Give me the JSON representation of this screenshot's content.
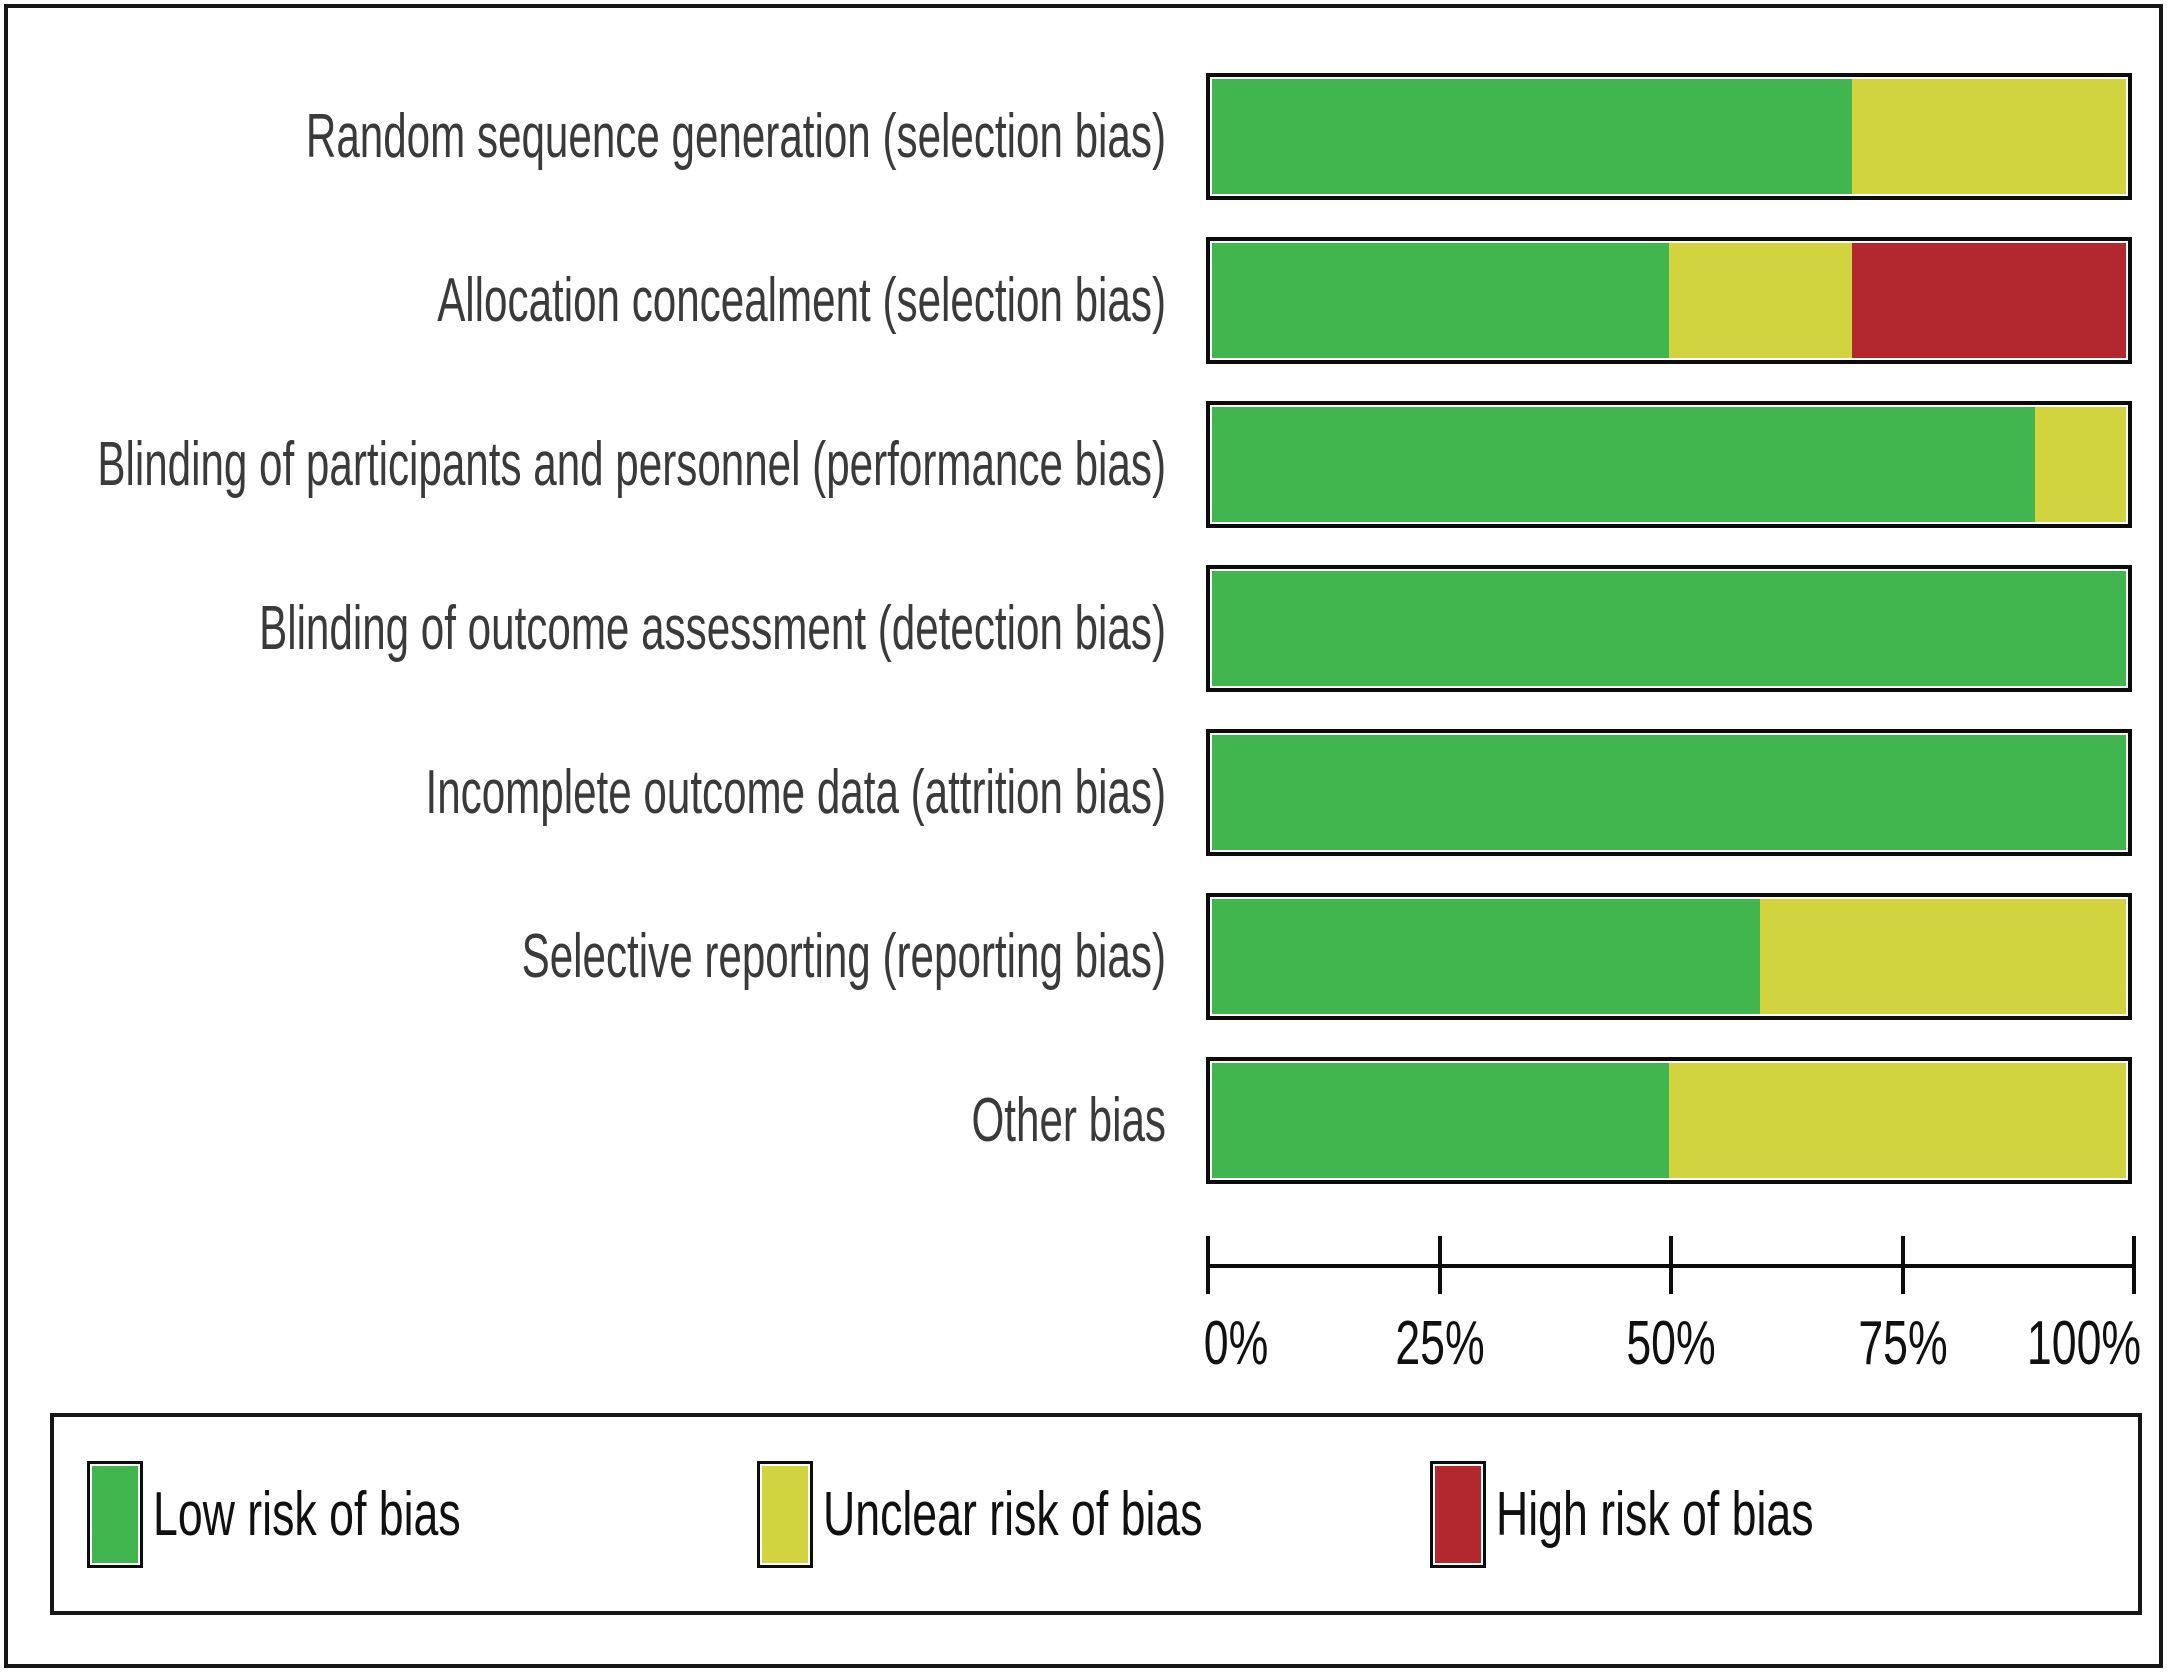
{
  "chart_data": {
    "type": "bar",
    "stacked": true,
    "orientation": "horizontal",
    "title": "",
    "xlabel": "",
    "ylabel": "",
    "xlim": [
      0,
      100
    ],
    "x_tick_labels": [
      "0%",
      "25%",
      "50%",
      "75%",
      "100%"
    ],
    "grid": false,
    "legend_position": "bottom",
    "categories": [
      "Random sequence generation (selection bias)",
      "Allocation concealment (selection bias)",
      "Blinding of participants and personnel (performance bias)",
      "Blinding of outcome assessment (detection bias)",
      "Incomplete outcome data (attrition bias)",
      "Selective reporting (reporting bias)",
      "Other bias"
    ],
    "series": [
      {
        "name": "Low risk of bias",
        "color": "#41b64e",
        "values": [
          70,
          50,
          90,
          100,
          100,
          60,
          50
        ]
      },
      {
        "name": "Unclear risk of bias",
        "color": "#d1d43f",
        "values": [
          30,
          20,
          10,
          0,
          0,
          40,
          50
        ]
      },
      {
        "name": "High risk of bias",
        "color": "#b2282e",
        "values": [
          0,
          30,
          0,
          0,
          0,
          0,
          0
        ]
      }
    ]
  },
  "legend": {
    "items": [
      {
        "label": "Low risk of bias",
        "color": "#41b64e"
      },
      {
        "label": "Unclear risk of bias",
        "color": "#d1d43f"
      },
      {
        "label": "High risk of bias",
        "color": "#b2282e"
      }
    ]
  },
  "colors": {
    "low_risk": "#41b64e",
    "unclear_risk": "#d1d43f",
    "high_risk": "#b2282e",
    "border": "#0c0c0c"
  }
}
